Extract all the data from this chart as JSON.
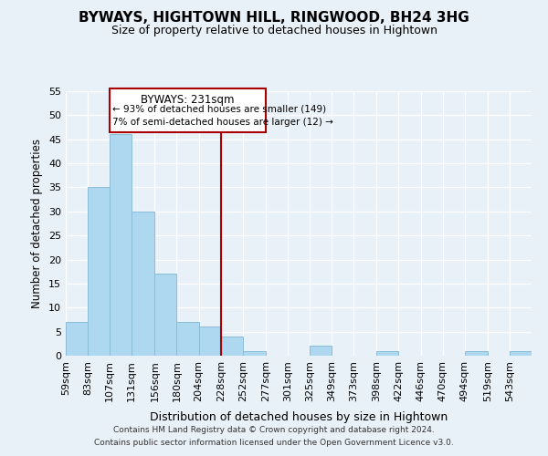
{
  "title": "BYWAYS, HIGHTOWN HILL, RINGWOOD, BH24 3HG",
  "subtitle": "Size of property relative to detached houses in Hightown",
  "xlabel": "Distribution of detached houses by size in Hightown",
  "ylabel": "Number of detached properties",
  "bar_color": "#add8f0",
  "bar_edge_color": "#8bbcd8",
  "background_color": "#e8f0f8",
  "grid_color": "#ffffff",
  "bin_labels": [
    "59sqm",
    "83sqm",
    "107sqm",
    "131sqm",
    "156sqm",
    "180sqm",
    "204sqm",
    "228sqm",
    "252sqm",
    "277sqm",
    "301sqm",
    "325sqm",
    "349sqm",
    "373sqm",
    "398sqm",
    "422sqm",
    "446sqm",
    "470sqm",
    "494sqm",
    "519sqm",
    "543sqm"
  ],
  "bin_edges": [
    59,
    83,
    107,
    131,
    156,
    180,
    204,
    228,
    252,
    277,
    301,
    325,
    349,
    373,
    398,
    422,
    446,
    470,
    494,
    519,
    543
  ],
  "bar_heights": [
    7,
    35,
    46,
    30,
    17,
    7,
    6,
    4,
    1,
    0,
    0,
    2,
    0,
    0,
    1,
    0,
    0,
    0,
    1,
    0,
    1
  ],
  "ylim": [
    0,
    55
  ],
  "yticks": [
    0,
    5,
    10,
    15,
    20,
    25,
    30,
    35,
    40,
    45,
    50,
    55
  ],
  "vline_x": 228,
  "vline_color": "#aa0000",
  "annotation_title": "BYWAYS: 231sqm",
  "annotation_line1": "← 93% of detached houses are smaller (149)",
  "annotation_line2": "7% of semi-detached houses are larger (12) →",
  "annotation_box_color": "#ffffff",
  "annotation_box_edge": "#aa0000",
  "footer1": "Contains HM Land Registry data © Crown copyright and database right 2024.",
  "footer2": "Contains public sector information licensed under the Open Government Licence v3.0."
}
